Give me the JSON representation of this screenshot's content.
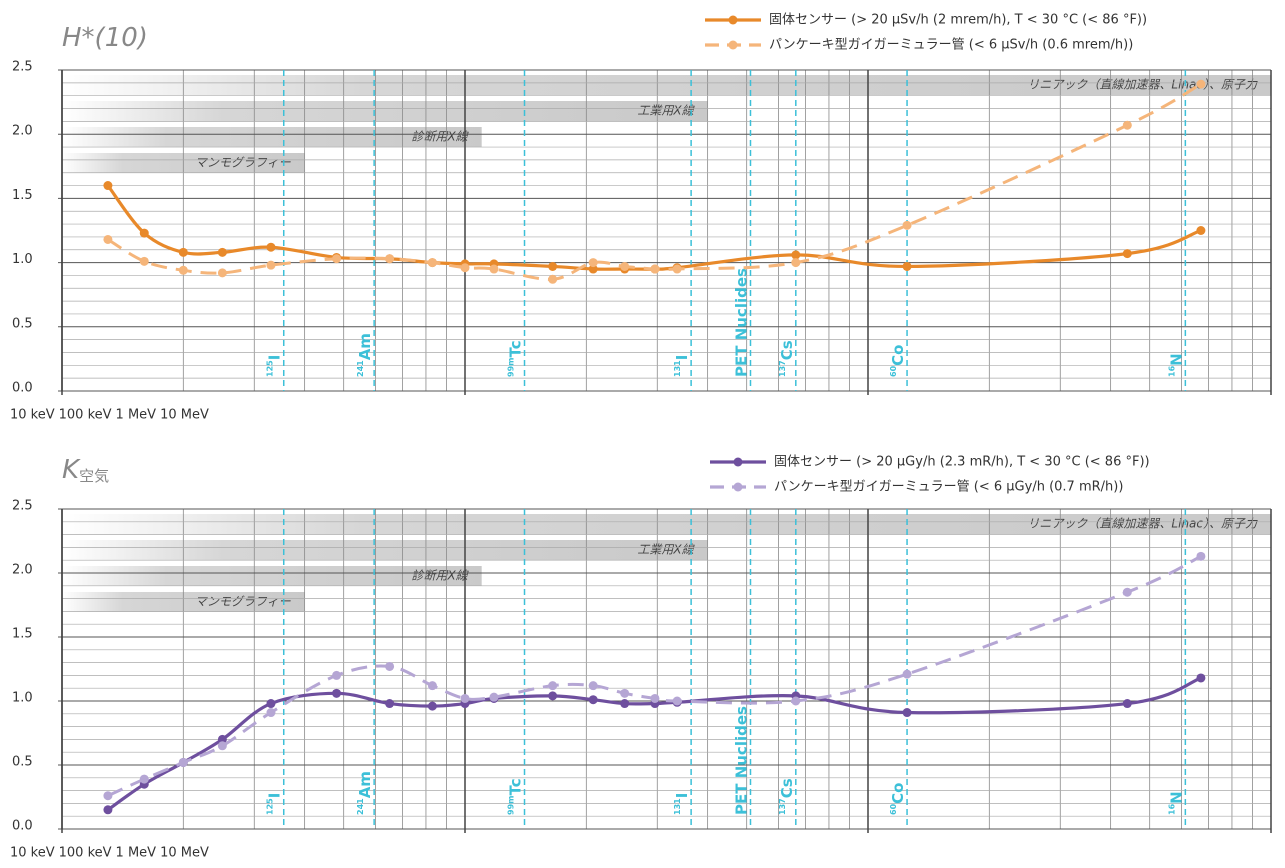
{
  "chart_data": [
    {
      "type": "line",
      "title": "H*(10)",
      "xlog": true,
      "grid": true,
      "xlim": [
        10,
        10000
      ],
      "xticks": [
        {
          "value": 10,
          "label": "10 keV"
        },
        {
          "value": 100,
          "label": "100 keV"
        },
        {
          "value": 1000,
          "label": "1 MeV"
        },
        {
          "value": 10000,
          "label": "10 MeV"
        }
      ],
      "ylim": [
        0,
        2.5
      ],
      "yticks": [
        {
          "value": 0,
          "label": "0.0"
        },
        0.5,
        {
          "value": 1,
          "label": "1.0"
        },
        1.5,
        {
          "value": 2,
          "label": "2.0"
        },
        2.5
      ],
      "x": [
        13,
        16,
        20,
        25,
        33,
        48,
        65,
        83,
        100,
        118,
        165,
        208,
        249,
        296,
        336,
        662,
        1250,
        4400,
        6700
      ],
      "series": [
        {
          "name": "固体センサー (> 20 µSv/h (2 mrem/h), T < 30 °C (< 86 °F))",
          "color": "#e8892a",
          "dashed": false,
          "values": [
            1.6,
            1.23,
            1.08,
            1.08,
            1.12,
            1.04,
            1.03,
            1.0,
            0.99,
            0.99,
            0.97,
            0.95,
            0.95,
            0.95,
            0.96,
            1.06,
            0.97,
            1.07,
            1.25
          ]
        },
        {
          "name": "パンケーキ型ガイガーミュラー管 (< 6 µSv/h (0.6 mrem/h))",
          "color": "#f5b57a",
          "dashed": true,
          "values": [
            1.18,
            1.01,
            0.94,
            0.92,
            0.98,
            1.03,
            1.03,
            1.0,
            0.96,
            0.95,
            0.87,
            1.0,
            0.97,
            0.95,
            0.95,
            1.0,
            1.29,
            2.07,
            2.39
          ]
        }
      ],
      "bands": [
        {
          "label": "リニアック（直線加速器、Linac）、原子力",
          "end": 10000
        },
        {
          "label": "工業用X線",
          "end": 400
        },
        {
          "label": "診断用X線",
          "end": 110
        },
        {
          "label": "マンモグラフィー",
          "end": 40
        }
      ],
      "nuclides": [
        {
          "energy": 35.5,
          "mass": "125",
          "symbol": "I"
        },
        {
          "energy": 59.5,
          "mass": "241",
          "symbol": "Am"
        },
        {
          "energy": 140.5,
          "mass": "99m",
          "symbol": "Tc"
        },
        {
          "energy": 364,
          "mass": "131",
          "symbol": "I"
        },
        {
          "energy": 511,
          "label": "PET Nuclides"
        },
        {
          "energy": 662,
          "mass": "137",
          "symbol": "Cs"
        },
        {
          "energy": 1250,
          "mass": "60",
          "symbol": "Co"
        },
        {
          "energy": 6130,
          "mass": "16",
          "symbol": "N"
        }
      ]
    },
    {
      "type": "line",
      "title": "K",
      "title_sub": "空気",
      "xlog": true,
      "grid": true,
      "xlim": [
        10,
        10000
      ],
      "xticks": [
        {
          "value": 10,
          "label": "10 keV"
        },
        {
          "value": 100,
          "label": "100 keV"
        },
        {
          "value": 1000,
          "label": "1 MeV"
        },
        {
          "value": 10000,
          "label": "10 MeV"
        }
      ],
      "ylim": [
        0,
        2.5
      ],
      "yticks": [
        {
          "value": 0,
          "label": "0.0"
        },
        0.5,
        {
          "value": 1,
          "label": "1.0"
        },
        1.5,
        {
          "value": 2,
          "label": "2.0"
        },
        2.5
      ],
      "x": [
        13,
        16,
        20,
        25,
        33,
        48,
        65,
        83,
        100,
        118,
        165,
        208,
        249,
        296,
        336,
        662,
        1250,
        4400,
        6700
      ],
      "series": [
        {
          "name": "固体センサー (> 20 µGy/h (2.3 mR/h), T < 30 °C (< 86 °F))",
          "color": "#6e4f9e",
          "dashed": false,
          "values": [
            0.15,
            0.35,
            0.52,
            0.7,
            0.98,
            1.06,
            0.98,
            0.96,
            0.98,
            1.02,
            1.04,
            1.01,
            0.98,
            0.98,
            0.99,
            1.04,
            0.91,
            0.98,
            1.18
          ]
        },
        {
          "name": "パンケーキ型ガイガーミュラー管 (< 6 µGy/h (0.7 mR/h))",
          "color": "#b5a6d4",
          "dashed": true,
          "values": [
            0.26,
            0.39,
            0.52,
            0.65,
            0.91,
            1.2,
            1.27,
            1.12,
            1.02,
            1.03,
            1.12,
            1.12,
            1.06,
            1.02,
            1.0,
            1.0,
            1.21,
            1.85,
            2.13
          ]
        }
      ],
      "bands": [
        {
          "label": "リニアック（直線加速器、Linac）、原子力",
          "end": 10000
        },
        {
          "label": "工業用X線",
          "end": 400
        },
        {
          "label": "診断用X線",
          "end": 110
        },
        {
          "label": "マンモグラフィー",
          "end": 40
        }
      ],
      "nuclides": [
        {
          "energy": 35.5,
          "mass": "125",
          "symbol": "I"
        },
        {
          "energy": 59.5,
          "mass": "241",
          "symbol": "Am"
        },
        {
          "energy": 140.5,
          "mass": "99m",
          "symbol": "Tc"
        },
        {
          "energy": 364,
          "mass": "131",
          "symbol": "I"
        },
        {
          "energy": 511,
          "label": "PET Nuclides"
        },
        {
          "energy": 662,
          "mass": "137",
          "symbol": "Cs"
        },
        {
          "energy": 1250,
          "mass": "60",
          "symbol": "Co"
        },
        {
          "energy": 6130,
          "mass": "16",
          "symbol": "N"
        }
      ]
    }
  ]
}
